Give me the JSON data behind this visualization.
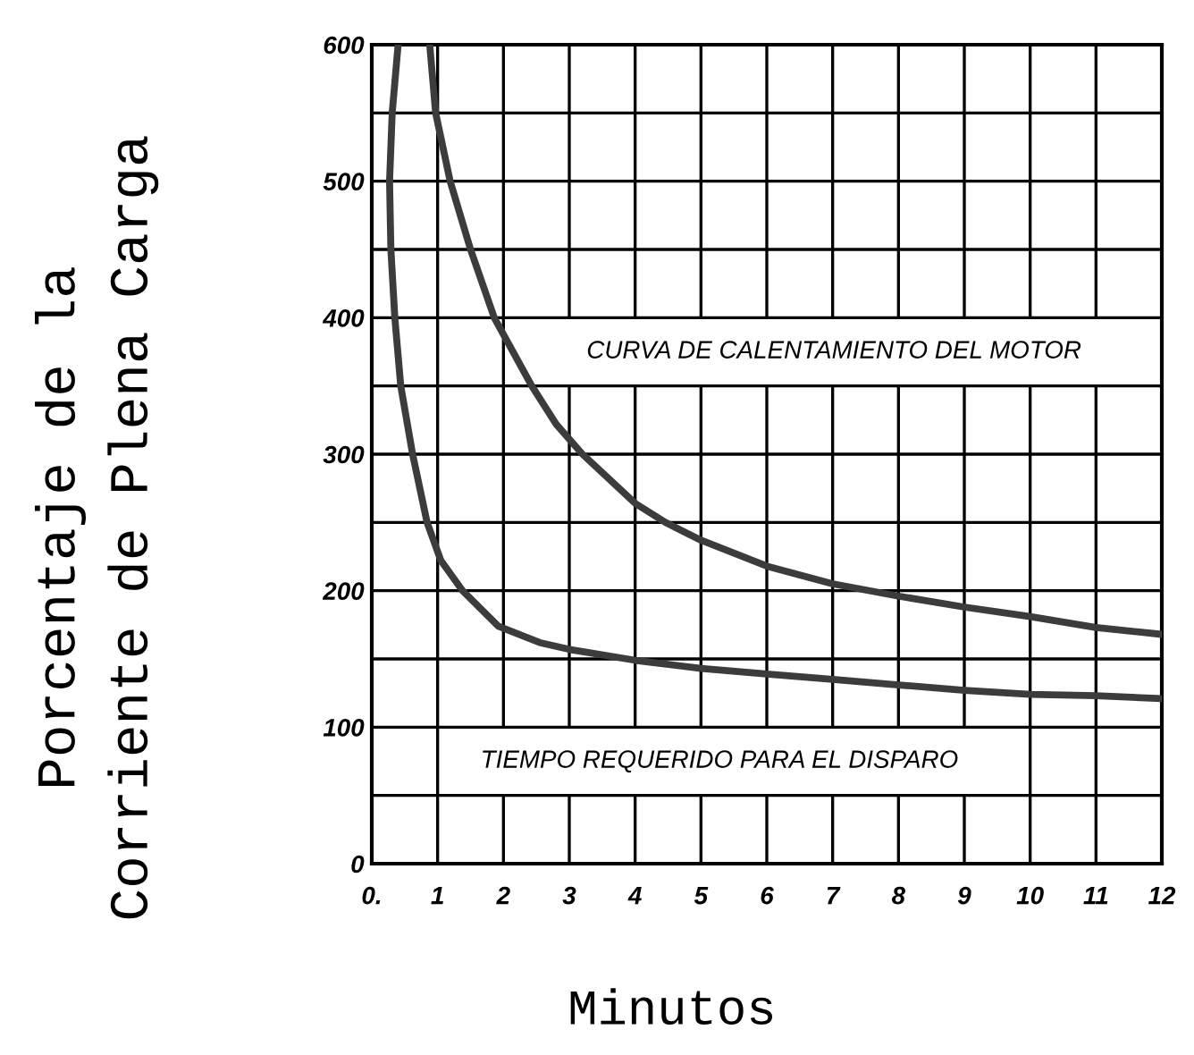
{
  "chart_data": {
    "type": "line",
    "xlabel": "Minutos",
    "ylabel": "Porcentaje de la\nCorriente de Plena Carga",
    "xlim": [
      0,
      12
    ],
    "ylim": [
      0,
      600
    ],
    "xticks": [
      {
        "value": 0,
        "label": "0."
      },
      1,
      2,
      3,
      4,
      5,
      6,
      7,
      8,
      9,
      10,
      11,
      12
    ],
    "yticks": [
      0,
      {
        "value": 50,
        "label": null
      },
      100,
      {
        "value": 150,
        "label": null
      },
      200,
      {
        "value": 250,
        "label": null
      },
      300,
      {
        "value": 350,
        "label": null
      },
      400,
      {
        "value": 450,
        "label": null
      },
      500,
      {
        "value": 550,
        "label": null
      },
      600
    ],
    "grid": true,
    "line_style": "solid",
    "series": [
      {
        "name": "CURVA DE CALENTAMIENTO DEL MOTOR",
        "color": "#3c3c3c",
        "x": [
          0.88,
          0.97,
          1.19,
          1.5,
          1.86,
          2.43,
          2.8,
          3.2,
          4.0,
          4.46,
          5.0,
          6.0,
          7.0,
          8.0,
          9.0,
          10.0,
          11.0,
          12.0
        ],
        "values": [
          600,
          550,
          500,
          450,
          400,
          350,
          322,
          300,
          264,
          250,
          237,
          218,
          205,
          196,
          188,
          181,
          173,
          168
        ]
      },
      {
        "name": "TIEMPO REQUERIDO PARA EL DISPARO",
        "color": "#3c3c3c",
        "x": [
          0.4,
          0.31,
          0.27,
          0.29,
          0.35,
          0.44,
          0.62,
          0.84,
          1.05,
          1.38,
          1.92,
          2.55,
          3.0,
          4.0,
          5.0,
          6.0,
          7.0,
          8.0,
          9.0,
          10.0,
          11.0,
          12.0
        ],
        "values": [
          600,
          550,
          500,
          450,
          400,
          350,
          300,
          250,
          222,
          200,
          174,
          162,
          157,
          149,
          143,
          139,
          135,
          131,
          127,
          124,
          123,
          121
        ]
      }
    ]
  }
}
